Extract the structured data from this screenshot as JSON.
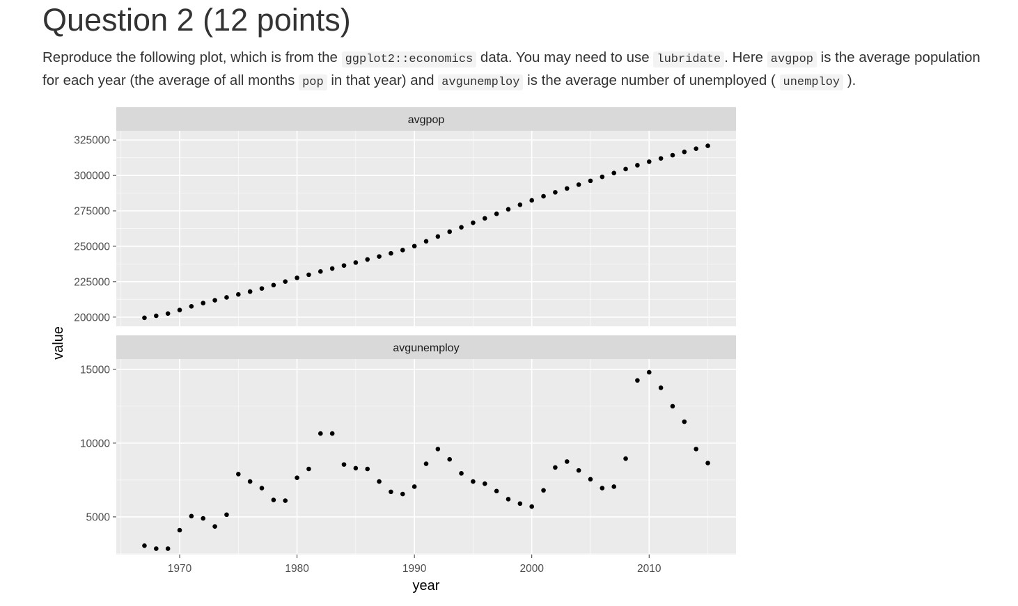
{
  "heading": "Question 2 (12 points)",
  "instructions": {
    "t1": "Reproduce the following plot, which is from the ",
    "c1": "ggplot2::economics",
    "t2": " data. You may need to use ",
    "c2": "lubridate",
    "t3": ". Here ",
    "c3": "avgpop",
    "t4": " is the average population for each year (the average of all months ",
    "c4": "pop",
    "t5": " in that year) and ",
    "c5": "avgunemploy",
    "t6": " is the average number of unemployed ( ",
    "c6": "unemploy",
    "t7": " )."
  },
  "chart_data": {
    "type": "scatter",
    "xlabel": "year",
    "ylabel": "value",
    "x_ticks": [
      1970,
      1980,
      1990,
      2000,
      2010
    ],
    "xlim": [
      1964.6,
      2017.4
    ],
    "point_color": "#000000",
    "panel_background": "#ebebeb",
    "strip_background": "#d9d9d9",
    "grid": true,
    "facets": [
      {
        "strip_label": "avgpop",
        "ylim": [
          193500,
          331500
        ],
        "y_ticks": [
          200000,
          225000,
          250000,
          275000,
          300000,
          325000
        ],
        "x": [
          1967,
          1968,
          1969,
          1970,
          1971,
          1972,
          1973,
          1974,
          1975,
          1976,
          1977,
          1978,
          1979,
          1980,
          1981,
          1982,
          1983,
          1984,
          1985,
          1986,
          1987,
          1988,
          1989,
          1990,
          1991,
          1992,
          1993,
          1994,
          1995,
          1996,
          1997,
          1998,
          1999,
          2000,
          2001,
          2002,
          2003,
          2004,
          2005,
          2006,
          2007,
          2008,
          2009,
          2010,
          2011,
          2012,
          2013,
          2014,
          2015
        ],
        "y": [
          199500,
          200900,
          202500,
          205000,
          207600,
          209900,
          211900,
          213900,
          216000,
          218000,
          220200,
          222600,
          225100,
          227700,
          229900,
          232200,
          234300,
          236400,
          238500,
          240700,
          242800,
          245000,
          247300,
          250100,
          253500,
          256900,
          260300,
          263400,
          266600,
          269700,
          272900,
          276100,
          279300,
          282400,
          285300,
          288100,
          290800,
          293500,
          296200,
          299000,
          301700,
          304500,
          307200,
          309700,
          312000,
          314300,
          316600,
          318900,
          320900
        ]
      },
      {
        "strip_label": "avgunemploy",
        "ylim": [
          2450,
          15700
        ],
        "y_ticks": [
          5000,
          10000,
          15000
        ],
        "x": [
          1967,
          1968,
          1969,
          1970,
          1971,
          1972,
          1973,
          1974,
          1975,
          1976,
          1977,
          1978,
          1979,
          1980,
          1981,
          1982,
          1983,
          1984,
          1985,
          1986,
          1987,
          1988,
          1989,
          1990,
          1991,
          1992,
          1993,
          1994,
          1995,
          1996,
          1997,
          1998,
          1999,
          2000,
          2001,
          2002,
          2003,
          2004,
          2005,
          2006,
          2007,
          2008,
          2009,
          2010,
          2011,
          2012,
          2013,
          2014,
          2015
        ],
        "y": [
          3050,
          2850,
          2850,
          4100,
          5050,
          4900,
          4350,
          5150,
          7900,
          7400,
          6950,
          6150,
          6100,
          7650,
          8250,
          10650,
          10650,
          8550,
          8300,
          8250,
          7400,
          6700,
          6550,
          7050,
          8600,
          9600,
          8900,
          7950,
          7400,
          7250,
          6750,
          6200,
          5900,
          5700,
          6800,
          8350,
          8750,
          8150,
          7550,
          6950,
          7050,
          8950,
          14250,
          14800,
          13750,
          12500,
          11450,
          9600,
          8650
        ]
      }
    ]
  }
}
